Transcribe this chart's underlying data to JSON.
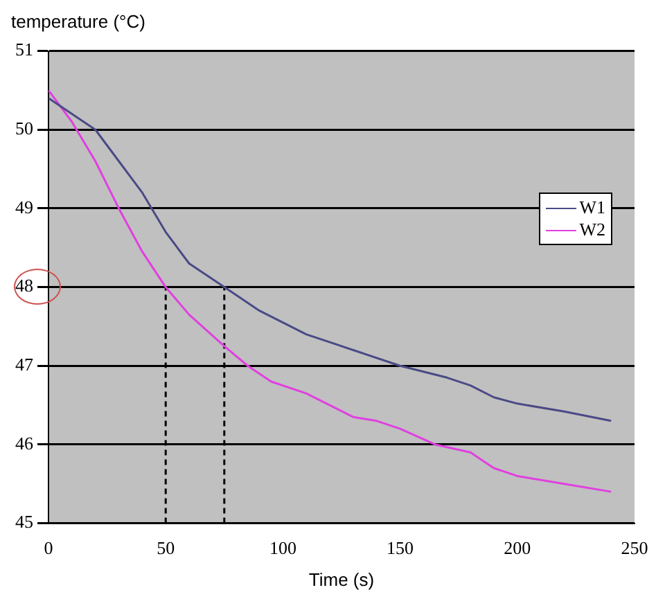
{
  "chart_data": {
    "type": "line",
    "ylabel": "temperature (°C)",
    "xlabel": "Time (s)",
    "xlim": [
      0,
      250
    ],
    "xticks": [
      0,
      50,
      100,
      150,
      200,
      250
    ],
    "ylim": [
      45,
      51
    ],
    "yticks": [
      45,
      46,
      47,
      48,
      49,
      50,
      51
    ],
    "grid": "y",
    "legend": "right",
    "marker": "none",
    "series": [
      {
        "name": "W1",
        "color": "#4a4a86",
        "x": [
          0,
          10,
          20,
          30,
          40,
          50,
          60,
          75,
          90,
          110,
          120,
          130,
          150,
          170,
          180,
          190,
          200,
          220,
          240
        ],
        "values": [
          50.4,
          50.2,
          50.0,
          49.6,
          49.2,
          48.7,
          48.3,
          48.0,
          47.7,
          47.4,
          47.3,
          47.2,
          47.0,
          46.85,
          46.75,
          46.6,
          46.52,
          46.42,
          46.3
        ]
      },
      {
        "name": "W2",
        "color": "#e040e0",
        "x": [
          0,
          10,
          20,
          25,
          30,
          40,
          50,
          60,
          75,
          85,
          95,
          110,
          120,
          130,
          140,
          150,
          165,
          180,
          190,
          200,
          220,
          240
        ],
        "values": [
          50.5,
          50.1,
          49.6,
          49.3,
          49.0,
          48.45,
          48.0,
          47.65,
          47.25,
          47.0,
          46.8,
          46.65,
          46.5,
          46.35,
          46.3,
          46.2,
          46.0,
          45.9,
          45.7,
          45.6,
          45.5,
          45.4
        ]
      },
      {
        "color": "#000000",
        "line_style": "dashed",
        "x": [
          50,
          50
        ],
        "values": [
          45,
          48
        ]
      },
      {
        "color": "#000000",
        "line_style": "dashed",
        "x": [
          75,
          75
        ],
        "values": [
          45,
          48
        ]
      }
    ]
  }
}
